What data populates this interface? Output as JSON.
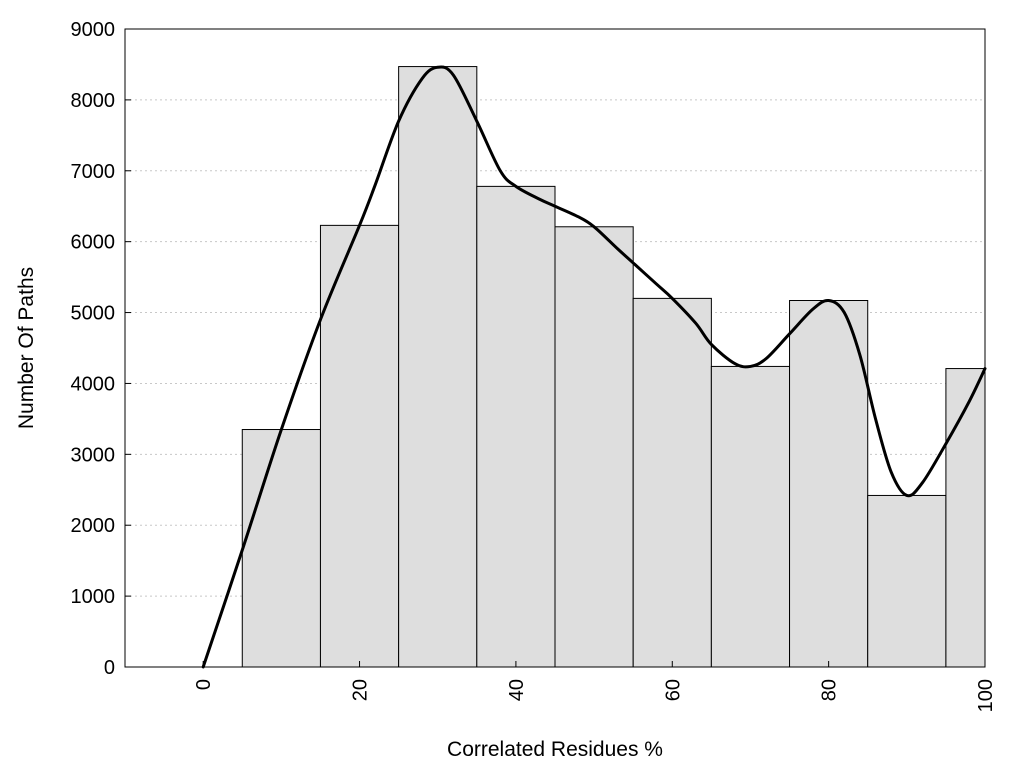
{
  "chart_data": {
    "type": "bar",
    "title": "",
    "xlabel": "Correlated Residues %",
    "ylabel": "Number Of Paths",
    "xlim": [
      -10,
      100
    ],
    "ylim": [
      0,
      9000
    ],
    "x_ticks": [
      0,
      20,
      40,
      60,
      80,
      100
    ],
    "y_ticks": [
      0,
      1000,
      2000,
      3000,
      4000,
      5000,
      6000,
      7000,
      8000,
      9000
    ],
    "grid": "horizontal dotted",
    "bin_width": 10,
    "bins": [
      {
        "center": 10,
        "value": 3350
      },
      {
        "center": 20,
        "value": 6230
      },
      {
        "center": 30,
        "value": 8470
      },
      {
        "center": 40,
        "value": 6780
      },
      {
        "center": 50,
        "value": 6210
      },
      {
        "center": 60,
        "value": 5200
      },
      {
        "center": 70,
        "value": 4240
      },
      {
        "center": 80,
        "value": 5170
      },
      {
        "center": 90,
        "value": 2420
      },
      {
        "center": 100,
        "value": 4210
      }
    ],
    "smooth_curve": [
      [
        0,
        0
      ],
      [
        5,
        1650
      ],
      [
        10,
        3350
      ],
      [
        15,
        4900
      ],
      [
        20,
        6230
      ],
      [
        22,
        6800
      ],
      [
        25,
        7700
      ],
      [
        28,
        8300
      ],
      [
        30,
        8460
      ],
      [
        32,
        8350
      ],
      [
        35,
        7700
      ],
      [
        38,
        7000
      ],
      [
        40,
        6780
      ],
      [
        43,
        6600
      ],
      [
        45,
        6500
      ],
      [
        48,
        6350
      ],
      [
        50,
        6210
      ],
      [
        53,
        5900
      ],
      [
        55,
        5700
      ],
      [
        58,
        5400
      ],
      [
        60,
        5200
      ],
      [
        63,
        4850
      ],
      [
        65,
        4550
      ],
      [
        68,
        4280
      ],
      [
        70,
        4240
      ],
      [
        72,
        4350
      ],
      [
        75,
        4700
      ],
      [
        78,
        5050
      ],
      [
        80,
        5170
      ],
      [
        82,
        5000
      ],
      [
        84,
        4400
      ],
      [
        86,
        3500
      ],
      [
        88,
        2750
      ],
      [
        90,
        2420
      ],
      [
        92,
        2600
      ],
      [
        95,
        3150
      ],
      [
        98,
        3750
      ],
      [
        100,
        4210
      ]
    ],
    "colors": {
      "bar_fill": "#dedede",
      "bar_stroke": "#000000",
      "curve": "#000000"
    }
  }
}
